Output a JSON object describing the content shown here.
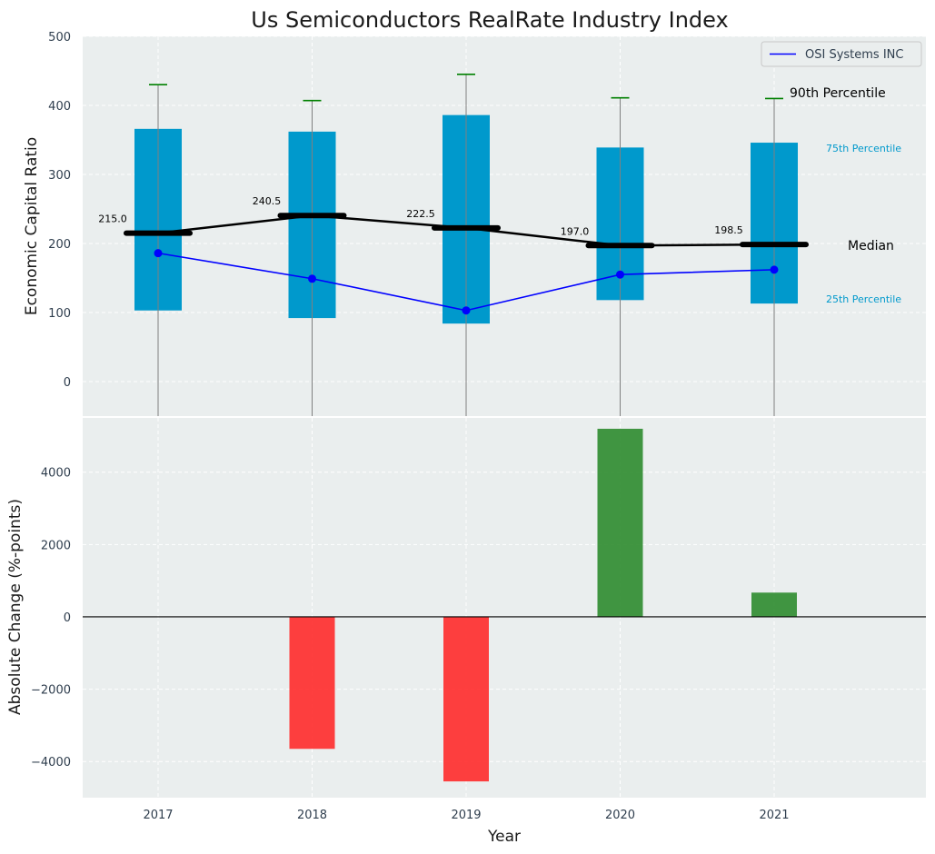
{
  "chart_data": {
    "title": "Us Semiconductors RealRate Industry Index",
    "xlabel": "Year",
    "categories": [
      "2017",
      "2018",
      "2019",
      "2020",
      "2021"
    ],
    "colors": {
      "background": "#eaeeee",
      "box": "#0099cc",
      "whisker": "#808080",
      "whisker_cap": "#008000",
      "median": "#000000",
      "company": "#0000ff",
      "positive": "#2e8b2e",
      "negative": "#ff2a2a"
    },
    "top_panel": {
      "type": "box",
      "ylabel": "Economic Capital Ratio",
      "ylim": [
        -50,
        500
      ],
      "yticks": [
        0,
        100,
        200,
        300,
        400,
        500
      ],
      "p25": [
        103,
        92,
        84,
        118,
        113
      ],
      "p75": [
        366,
        362,
        386,
        339,
        346
      ],
      "p90": [
        430,
        407,
        445,
        411,
        410
      ],
      "median": [
        215.0,
        240.5,
        222.5,
        197.0,
        198.5
      ],
      "median_labels": [
        "215.0",
        "240.5",
        "222.5",
        "197.0",
        "198.5"
      ],
      "company": {
        "name": "OSI Systems INC",
        "values": [
          186,
          149,
          103,
          155,
          162
        ]
      },
      "annotations": {
        "p90": "90th Percentile",
        "p75": "75th Percentile",
        "median": "Median",
        "p25": "25th Percentile"
      },
      "legend_position": "top-right",
      "grid": true
    },
    "bottom_panel": {
      "type": "bar",
      "ylabel": "Absolute Change (%-points)",
      "ylim": [
        -5000,
        5500
      ],
      "yticks": [
        -4000,
        -2000,
        0,
        2000,
        4000
      ],
      "ytick_labels": [
        "−4000",
        "−2000",
        "0",
        "2000",
        "4000"
      ],
      "values": [
        0,
        -3650,
        -4550,
        5200,
        670
      ],
      "grid": true
    }
  }
}
